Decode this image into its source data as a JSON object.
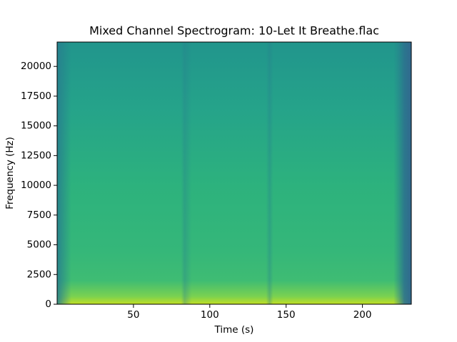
{
  "chart_data": {
    "type": "spectrogram",
    "title": "Mixed Channel Spectrogram: 10-Let It Breathe.flac",
    "x_label": "Time (s)",
    "y_label": "Frequency (Hz)",
    "xlim": [
      0,
      232
    ],
    "ylim": [
      0,
      22050
    ],
    "xticks": [
      50,
      100,
      150,
      200
    ],
    "yticks": [
      0,
      2500,
      5000,
      7500,
      10000,
      12500,
      15000,
      17500,
      20000
    ]
  }
}
